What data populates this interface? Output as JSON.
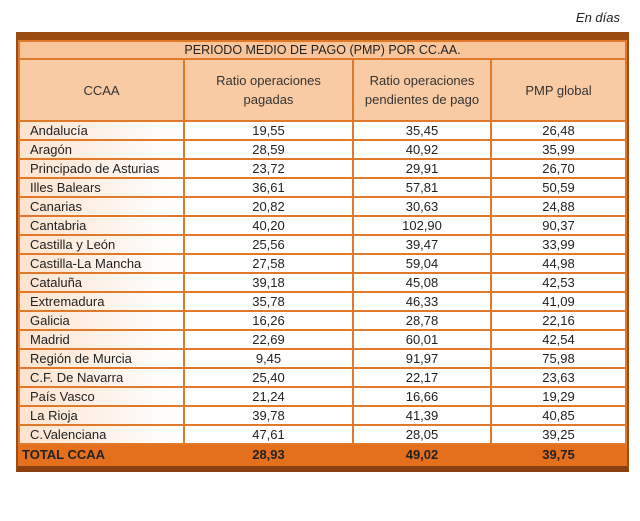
{
  "unit_note": "En días",
  "table": {
    "title": "PERIODO MEDIO DE PAGO (PMP) POR CC.AA.",
    "headers": [
      "CCAA",
      "Ratio operaciones pagadas",
      "Ratio operaciones pendientes de pago",
      "PMP global"
    ],
    "rows": [
      [
        "Andalucía",
        "19,55",
        "35,45",
        "26,48"
      ],
      [
        "Aragón",
        "28,59",
        "40,92",
        "35,99"
      ],
      [
        "Principado de Asturias",
        "23,72",
        "29,91",
        "26,70"
      ],
      [
        "Illes Balears",
        "36,61",
        "57,81",
        "50,59"
      ],
      [
        "Canarias",
        "20,82",
        "30,63",
        "24,88"
      ],
      [
        "Cantabria",
        "40,20",
        "102,90",
        "90,37"
      ],
      [
        "Castilla y León",
        "25,56",
        "39,47",
        "33,99"
      ],
      [
        "Castilla-La Mancha",
        "27,58",
        "59,04",
        "44,98"
      ],
      [
        "Cataluña",
        "39,18",
        "45,08",
        "42,53"
      ],
      [
        "Extremadura",
        "35,78",
        "46,33",
        "41,09"
      ],
      [
        "Galicia",
        "16,26",
        "28,78",
        "22,16"
      ],
      [
        "Madrid",
        "22,69",
        "60,01",
        "42,54"
      ],
      [
        "Región de Murcia",
        "9,45",
        "91,97",
        "75,98"
      ],
      [
        "C.F. De Navarra",
        "25,40",
        "22,17",
        "23,63"
      ],
      [
        "País Vasco",
        "21,24",
        "16,66",
        "19,29"
      ],
      [
        "La Rioja",
        "39,78",
        "41,39",
        "40,85"
      ],
      [
        "C.Valenciana",
        "47,61",
        "28,05",
        "39,25"
      ]
    ],
    "total": [
      "TOTAL CCAA",
      "28,93",
      "49,02",
      "39,75"
    ]
  },
  "colors": {
    "frame": "#9b4a10",
    "header": "#f9cba4",
    "grid": "#e07a2a",
    "total": "#e4701e"
  }
}
